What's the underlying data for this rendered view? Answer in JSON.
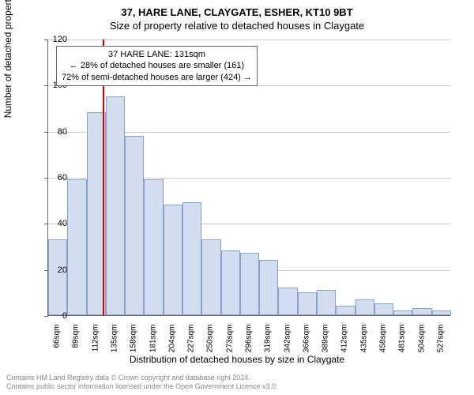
{
  "title_main": "37, HARE LANE, CLAYGATE, ESHER, KT10 9BT",
  "title_sub": "Size of property relative to detached houses in Claygate",
  "y_axis_label": "Number of detached properties",
  "x_axis_label": "Distribution of detached houses by size in Claygate",
  "chart": {
    "type": "histogram",
    "ylim": [
      0,
      120
    ],
    "ytick_step": 20,
    "yticks": [
      0,
      20,
      40,
      60,
      80,
      100,
      120
    ],
    "bar_fill": "#d2ddf0",
    "bar_stroke": "#8aa1c9",
    "grid_color": "#cccccc",
    "axis_color": "#666666",
    "marker_color": "#dd0000",
    "marker_x_value": 131,
    "x_start": 66,
    "x_step": 23,
    "categories": [
      "66sqm",
      "89sqm",
      "112sqm",
      "135sqm",
      "158sqm",
      "181sqm",
      "204sqm",
      "227sqm",
      "250sqm",
      "273sqm",
      "296sqm",
      "319sqm",
      "342sqm",
      "366sqm",
      "389sqm",
      "412sqm",
      "435sqm",
      "458sqm",
      "481sqm",
      "504sqm",
      "527sqm"
    ],
    "values": [
      33,
      59,
      88,
      95,
      78,
      59,
      48,
      49,
      33,
      28,
      27,
      24,
      12,
      10,
      11,
      4,
      7,
      5,
      2,
      3,
      2
    ]
  },
  "annotation": {
    "line1": "37 HARE LANE: 131sqm",
    "line2": "← 28% of detached houses are smaller (161)",
    "line3": "72% of semi-detached houses are larger (424) →"
  },
  "footer": {
    "line1": "Contains HM Land Registry data © Crown copyright and database right 2024.",
    "line2": "Contains public sector information licensed under the Open Government Licence v3.0."
  }
}
